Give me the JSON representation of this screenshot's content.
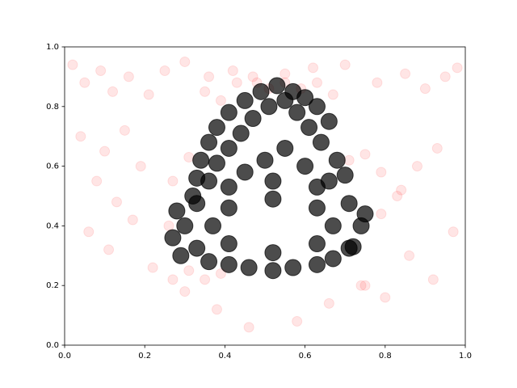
{
  "chart_data": {
    "type": "scatter",
    "xlim": [
      0,
      1
    ],
    "ylim": [
      0,
      1
    ],
    "xticks": [
      {
        "value": 0,
        "label": "0.0"
      },
      0.2,
      0.4,
      0.6,
      0.8,
      {
        "value": 1,
        "label": "1.0"
      }
    ],
    "yticks": [
      {
        "value": 0,
        "label": "0.0"
      },
      0.2,
      0.4,
      0.6,
      0.8,
      {
        "value": 1,
        "label": "1.0"
      }
    ],
    "series": [
      {
        "color": "#ff0000",
        "opacity": 0.1,
        "x": [
          0.02,
          0.05,
          0.09,
          0.12,
          0.16,
          0.21,
          0.25,
          0.3,
          0.36,
          0.42,
          0.48,
          0.55,
          0.62,
          0.7,
          0.78,
          0.85,
          0.9,
          0.95,
          0.98,
          0.04,
          0.1,
          0.15,
          0.08,
          0.13,
          0.19,
          0.06,
          0.11,
          0.17,
          0.22,
          0.3,
          0.38,
          0.46,
          0.58,
          0.66,
          0.74,
          0.8,
          0.86,
          0.92,
          0.97,
          0.84,
          0.88,
          0.93,
          0.27,
          0.27,
          0.31,
          0.31,
          0.35,
          0.35,
          0.39,
          0.39,
          0.43,
          0.47,
          0.51,
          0.55,
          0.59,
          0.63,
          0.67,
          0.71,
          0.75,
          0.79,
          0.26,
          0.75,
          0.79,
          0.83
        ],
        "values": [
          0.94,
          0.88,
          0.92,
          0.85,
          0.9,
          0.84,
          0.92,
          0.95,
          0.9,
          0.92,
          0.88,
          0.91,
          0.93,
          0.94,
          0.88,
          0.91,
          0.86,
          0.9,
          0.93,
          0.7,
          0.65,
          0.72,
          0.55,
          0.48,
          0.6,
          0.38,
          0.32,
          0.42,
          0.26,
          0.18,
          0.12,
          0.06,
          0.08,
          0.14,
          0.2,
          0.16,
          0.3,
          0.22,
          0.38,
          0.52,
          0.6,
          0.66,
          0.55,
          0.22,
          0.63,
          0.25,
          0.85,
          0.22,
          0.82,
          0.24,
          0.88,
          0.9,
          0.86,
          0.88,
          0.86,
          0.88,
          0.84,
          0.62,
          0.64,
          0.58,
          0.4,
          0.2,
          0.44,
          0.5
        ]
      },
      {
        "color": "#000000",
        "opacity": 0.7,
        "x": [
          0.74,
          0.71,
          0.63,
          0.52,
          0.41,
          0.33,
          0.3,
          0.33,
          0.41,
          0.52,
          0.63,
          0.71,
          0.67,
          0.63,
          0.52,
          0.41,
          0.37,
          0.41,
          0.52,
          0.63,
          0.32,
          0.33,
          0.34,
          0.36,
          0.38,
          0.41,
          0.45,
          0.49,
          0.53,
          0.57,
          0.6,
          0.63,
          0.66,
          0.36,
          0.38,
          0.41,
          0.44,
          0.47,
          0.51,
          0.55,
          0.58,
          0.61,
          0.64,
          0.68,
          0.45,
          0.5,
          0.55,
          0.6,
          0.66,
          0.7,
          0.28,
          0.27,
          0.29,
          0.36,
          0.46,
          0.57,
          0.67,
          0.72,
          0.75
        ],
        "values": [
          0.4,
          0.475,
          0.53,
          0.55,
          0.53,
          0.475,
          0.4,
          0.325,
          0.27,
          0.25,
          0.27,
          0.325,
          0.4,
          0.46,
          0.49,
          0.46,
          0.4,
          0.34,
          0.31,
          0.34,
          0.5,
          0.56,
          0.62,
          0.68,
          0.73,
          0.78,
          0.82,
          0.85,
          0.87,
          0.85,
          0.83,
          0.8,
          0.75,
          0.55,
          0.61,
          0.66,
          0.71,
          0.76,
          0.8,
          0.82,
          0.78,
          0.73,
          0.68,
          0.62,
          0.58,
          0.62,
          0.66,
          0.6,
          0.55,
          0.57,
          0.45,
          0.36,
          0.3,
          0.28,
          0.26,
          0.26,
          0.29,
          0.33,
          0.44
        ]
      }
    ]
  }
}
